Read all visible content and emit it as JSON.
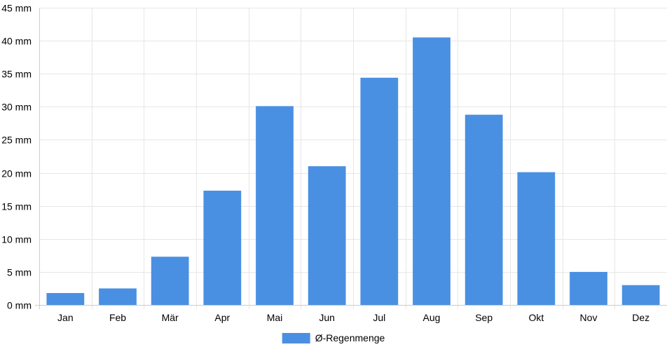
{
  "chart_data": {
    "type": "bar",
    "title": "",
    "xlabel": "",
    "ylabel": "",
    "categories": [
      "Jan",
      "Feb",
      "Mär",
      "Apr",
      "Mai",
      "Jun",
      "Jul",
      "Aug",
      "Sep",
      "Okt",
      "Nov",
      "Dez"
    ],
    "series": [
      {
        "name": "Ø-Regenmenge",
        "values": [
          1.8,
          2.5,
          7.3,
          17.3,
          30.1,
          21.0,
          34.4,
          40.5,
          28.8,
          20.1,
          5.0,
          3.0
        ],
        "color": "#4a90e2"
      }
    ],
    "ylim": [
      0,
      45
    ],
    "y_ticks": [
      0,
      5,
      10,
      15,
      20,
      25,
      30,
      35,
      40,
      45
    ],
    "y_tick_labels": [
      "0 mm",
      "5 mm",
      "10 mm",
      "15 mm",
      "20 mm",
      "25 mm",
      "30 mm",
      "35 mm",
      "40 mm",
      "45 mm"
    ],
    "grid": true,
    "legend_position": "bottom-center"
  }
}
